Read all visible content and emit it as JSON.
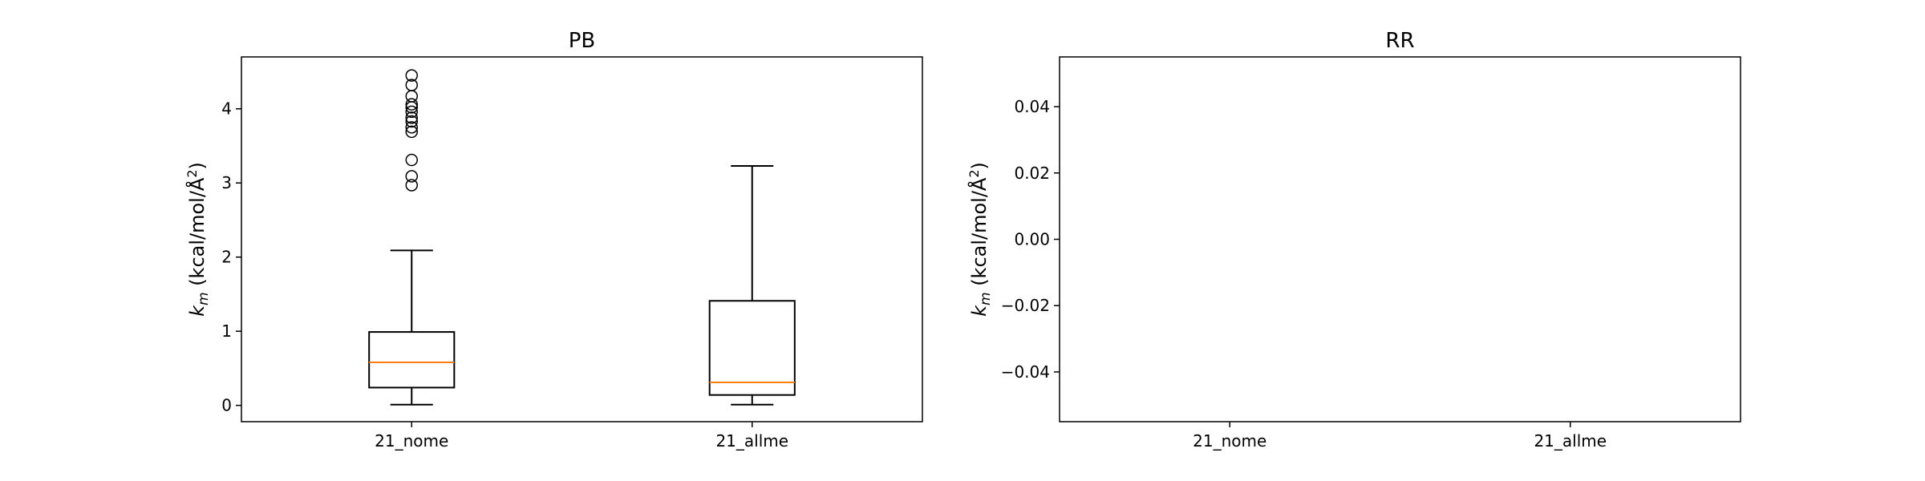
{
  "colors": {
    "box_stroke": "#000000",
    "median": "#ff7f0e",
    "background": "#ffffff"
  },
  "chart_data": [
    {
      "type": "box",
      "title": "PB",
      "ylabel_symbol": "k",
      "ylabel_subscript": "m",
      "ylabel_units": " (kcal/mol/Å",
      "ylabel_sup": "2",
      "ylabel_close": ")",
      "categories": [
        "21_nome",
        "21_allme"
      ],
      "ylim": [
        -0.22,
        4.7
      ],
      "yticks": [
        {
          "value": 0,
          "label": "0"
        },
        {
          "value": 1,
          "label": "1"
        },
        {
          "value": 2,
          "label": "2"
        },
        {
          "value": 3,
          "label": "3"
        },
        {
          "value": 4,
          "label": "4"
        }
      ],
      "boxes": [
        {
          "name": "21_nome",
          "whisker_low": 0.01,
          "q1": 0.24,
          "median": 0.58,
          "q3": 0.99,
          "whisker_high": 2.09,
          "outliers": [
            2.97,
            3.09,
            3.31,
            3.69,
            3.75,
            3.83,
            3.88,
            3.96,
            4.02,
            4.06,
            4.17,
            4.32,
            4.45
          ]
        },
        {
          "name": "21_allme",
          "whisker_low": 0.01,
          "q1": 0.14,
          "median": 0.31,
          "q3": 1.41,
          "whisker_high": 3.23,
          "outliers": []
        }
      ],
      "grid": false,
      "legend": "none"
    },
    {
      "type": "box",
      "title": "RR",
      "ylabel_symbol": "k",
      "ylabel_subscript": "m",
      "ylabel_units": " (kcal/mol/Å",
      "ylabel_sup": "2",
      "ylabel_close": ")",
      "categories": [
        "21_nome",
        "21_allme"
      ],
      "ylim": [
        -0.055,
        0.055
      ],
      "yticks": [
        {
          "value": -0.04,
          "label": "−0.04"
        },
        {
          "value": -0.02,
          "label": "−0.02"
        },
        {
          "value": 0.0,
          "label": "0.00"
        },
        {
          "value": 0.02,
          "label": "0.02"
        },
        {
          "value": 0.04,
          "label": "0.04"
        }
      ],
      "boxes": [],
      "grid": false,
      "legend": "none"
    }
  ]
}
